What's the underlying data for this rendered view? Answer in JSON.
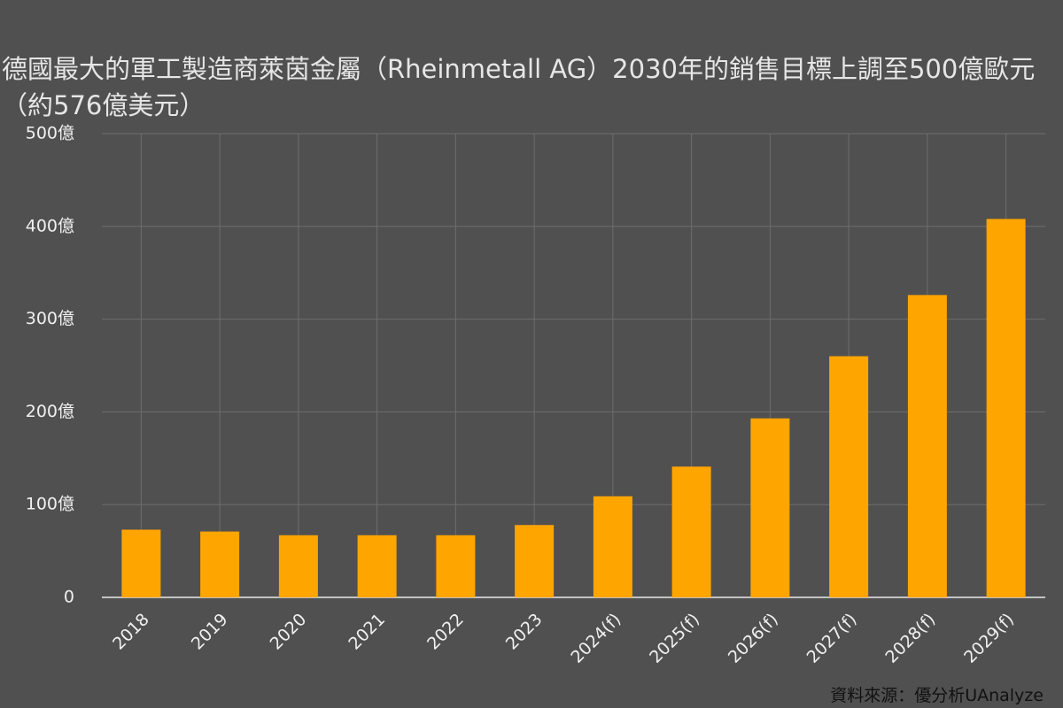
{
  "chart_data": {
    "type": "bar",
    "title": "德國最大的軍工製造商萊茵金屬（Rheinmetall AG）2030年的銷售目標上調至500億歐元（約576億美元）",
    "source": "資料來源：優分析UAnalyze",
    "categories": [
      "2018",
      "2019",
      "2020",
      "2021",
      "2022",
      "2023",
      "2024(f)",
      "2025(f)",
      "2026(f)",
      "2027(f)",
      "2028(f)",
      "2029(f)"
    ],
    "values": [
      73,
      71,
      67,
      67,
      67,
      78,
      109,
      141,
      193,
      260,
      326,
      408
    ],
    "color": "#ffa500",
    "ylim": [
      0,
      500
    ],
    "yticks": [
      0,
      {
        "value": 100,
        "label": "100億"
      },
      {
        "value": 200,
        "label": "200億"
      },
      {
        "value": 300,
        "label": "300億"
      },
      {
        "value": 400,
        "label": "400億"
      },
      {
        "value": 500,
        "label": "500億"
      }
    ],
    "grid": true
  }
}
